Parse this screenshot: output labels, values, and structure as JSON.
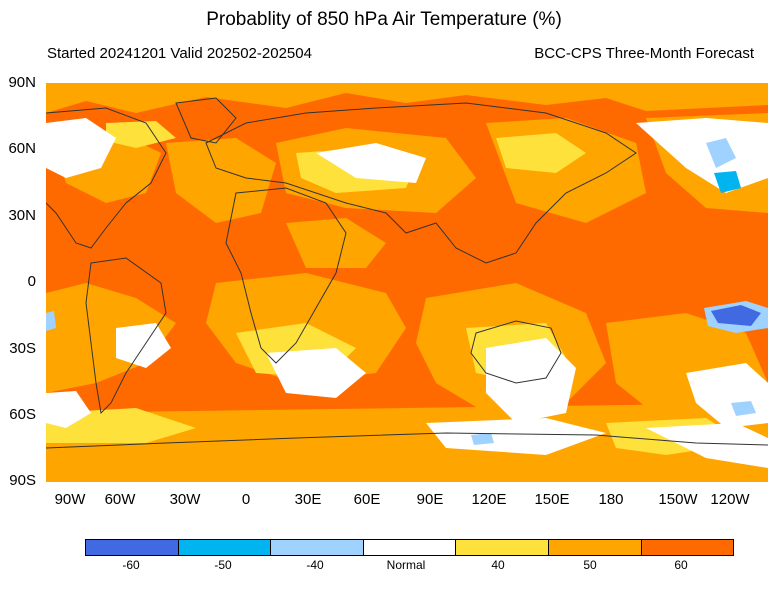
{
  "header": {
    "title": "Probablity of 850 hPa Air Temperature (%)",
    "started": "Started 20241201  Valid 202502-202504",
    "model": "BCC-CPS Three-Month Forecast"
  },
  "lat_labels": [
    "90N",
    "60N",
    "30N",
    "0",
    "30S",
    "60S",
    "90S"
  ],
  "lon_labels": [
    "90W",
    "60W",
    "30W",
    "0",
    "30E",
    "60E",
    "90E",
    "120E",
    "150E",
    "180",
    "150W",
    "120W"
  ],
  "colorbar": {
    "labels": [
      "-60",
      "-50",
      "-40",
      "Normal",
      "40",
      "50",
      "60"
    ],
    "colors": [
      "#4169e1",
      "#00b4f0",
      "#a0d2ff",
      "#ffffff",
      "#ffe13c",
      "#ffa500",
      "#ff6a00"
    ]
  },
  "map_colors": {
    "ocean": "#ff6a00",
    "coast": "#333333"
  }
}
